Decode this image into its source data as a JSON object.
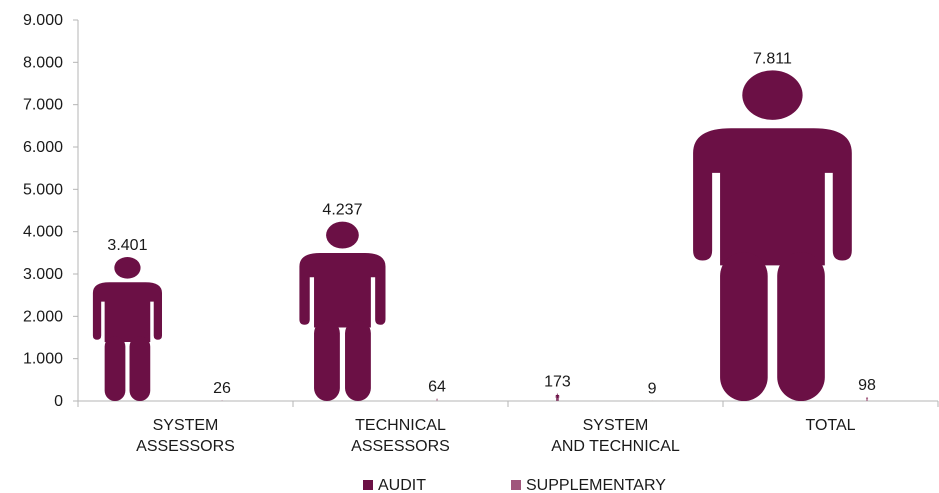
{
  "chart_data": {
    "type": "bar",
    "categories": [
      [
        "SYSTEM",
        "ASSESSORS"
      ],
      [
        "TECHNICAL",
        "ASSESSORS"
      ],
      [
        "SYSTEM",
        "AND TECHNICAL"
      ],
      [
        "TOTAL"
      ]
    ],
    "series": [
      {
        "name": "AUDIT",
        "values": [
          3401,
          4237,
          173,
          7811
        ],
        "labels": [
          "3.401",
          "4.237",
          "173",
          "7.811"
        ],
        "color": "#6b1045"
      },
      {
        "name": "SUPPLEMENTARY",
        "values": [
          26,
          64,
          9,
          98
        ],
        "labels": [
          "26",
          "64",
          "9",
          "98"
        ],
        "color": "#a0567c"
      }
    ],
    "title": "",
    "xlabel": "",
    "ylabel": "",
    "ylim": [
      0,
      9000
    ],
    "yticks": [
      0,
      1000,
      2000,
      3000,
      4000,
      5000,
      6000,
      7000,
      8000,
      9000
    ],
    "ytick_labels": [
      "0",
      "1.000",
      "2.000",
      "3.000",
      "4.000",
      "5.000",
      "6.000",
      "7.000",
      "8.000",
      "9.000"
    ],
    "legend_position": "bottom",
    "mark_shape": "person-icon"
  }
}
